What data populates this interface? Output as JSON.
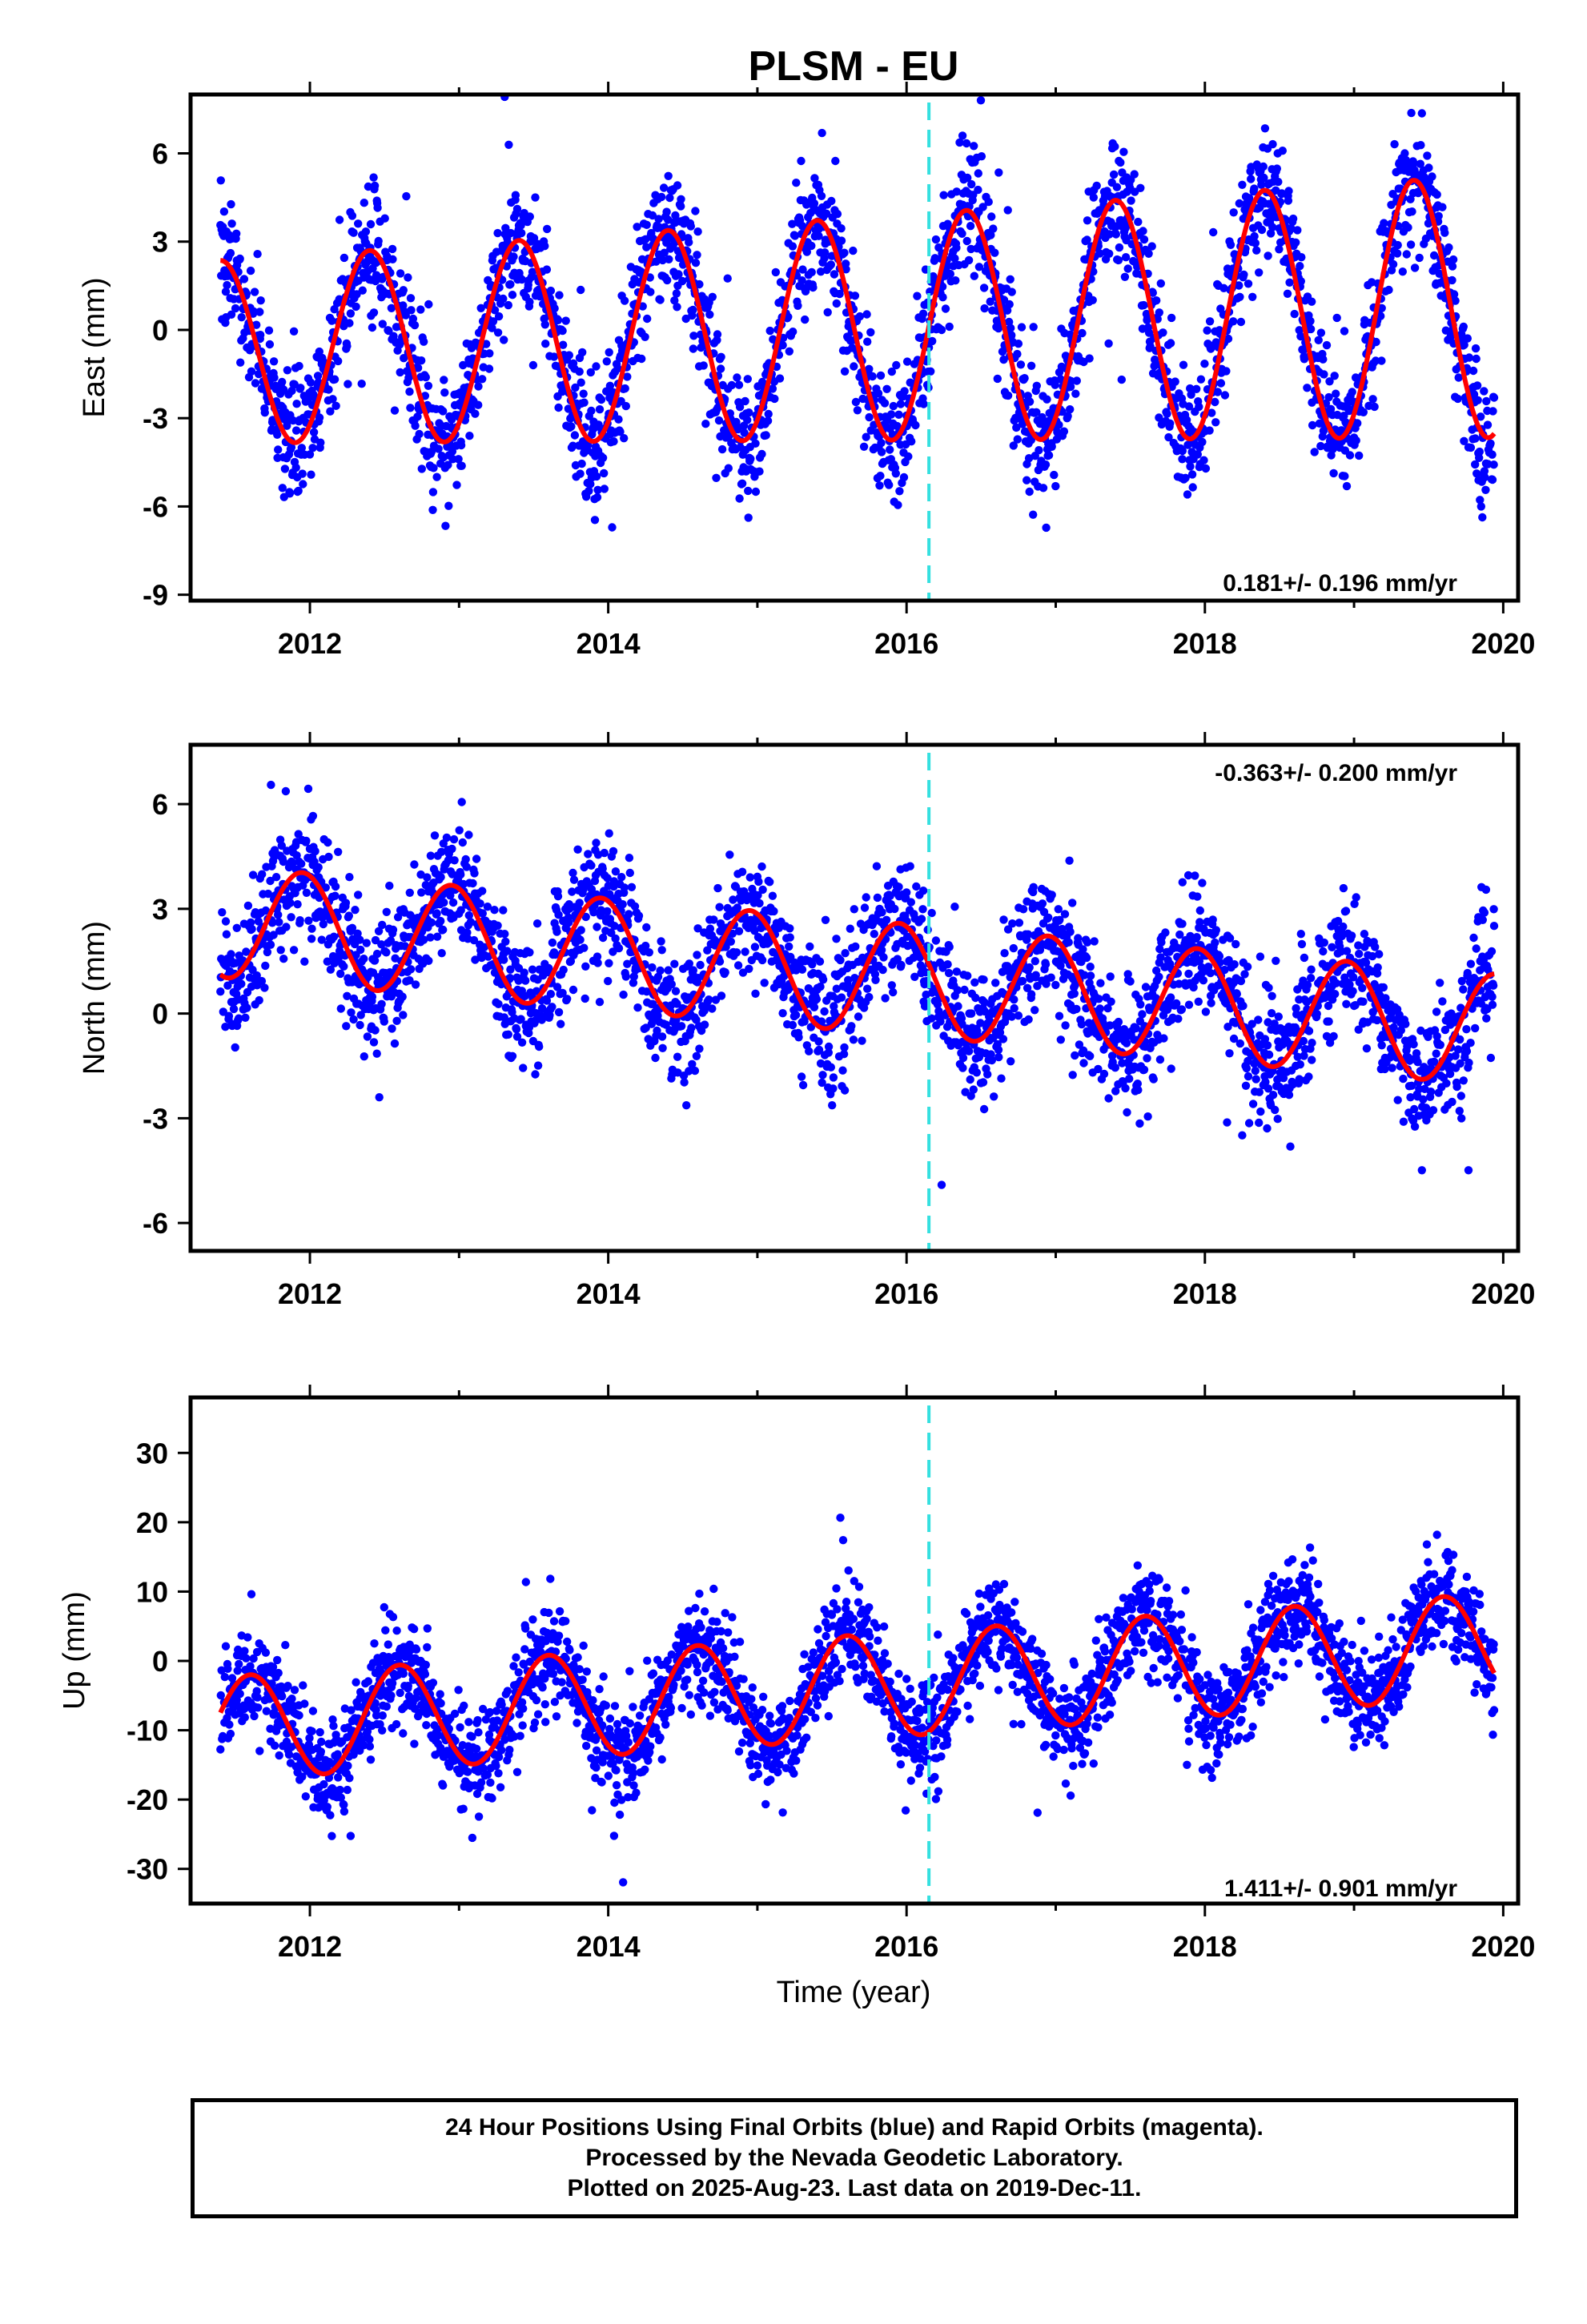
{
  "title": "PLSM - EU",
  "xlabel": "Time (year)",
  "footer": {
    "line1": "24 Hour Positions Using Final Orbits (blue) and Rapid Orbits (magenta).",
    "line2": "Processed by the Nevada Geodetic Laboratory.",
    "line3": "Plotted on 2025-Aug-23. Last data on 2019-Dec-11."
  },
  "colors": {
    "points": "#0000ff",
    "fit": "#ff0000",
    "equipment_change": "#33e0e0",
    "frame": "#000000"
  },
  "chart_data": [
    {
      "type": "scatter",
      "ylabel": "East (mm)",
      "rate_label": "0.181+/- 0.196 mm/yr",
      "xlim": [
        2011.2,
        2020.1
      ],
      "ylim": [
        -9.2,
        8
      ],
      "yticks": [
        6,
        3,
        0,
        -3,
        -6,
        -9
      ],
      "xticks": [
        2012,
        2014,
        2016,
        2018,
        2020
      ],
      "equipment_change_x": 2016.15,
      "time_range": [
        2011.4,
        2019.94
      ],
      "fit": {
        "offset": 0.0,
        "trend": 0.181,
        "amplitude": 3.1,
        "amplitude_change": 0.16,
        "peak_year_fraction": 0.4,
        "noise_sd": 1.1
      },
      "series": [
        {
          "values": []
        }
      ]
    },
    {
      "type": "scatter",
      "ylabel": "North (mm)",
      "rate_label": "-0.363+/- 0.200 mm/yr",
      "xlim": [
        2011.2,
        2020.1
      ],
      "ylim": [
        -6.8,
        7.7
      ],
      "yticks": [
        6,
        3,
        0,
        -3,
        -6
      ],
      "xticks": [
        2012,
        2014,
        2016,
        2018,
        2020
      ],
      "equipment_change_x": 2016.15,
      "time_range": [
        2011.4,
        2019.94
      ],
      "fit": {
        "offset": 1.15,
        "trend": -0.363,
        "amplitude": 1.6,
        "amplitude_change": 0.0,
        "peak_year_fraction": 0.95,
        "noise_sd": 0.9
      },
      "series": [
        {
          "values": []
        }
      ]
    },
    {
      "type": "scatter",
      "ylabel": "Up (mm)",
      "rate_label": "1.411+/- 0.901 mm/yr",
      "xlim": [
        2011.2,
        2020.1
      ],
      "ylim": [
        -35,
        38
      ],
      "yticks": [
        30,
        20,
        10,
        0,
        -10,
        -20,
        -30
      ],
      "xticks": [
        2012,
        2014,
        2016,
        2018,
        2020
      ],
      "equipment_change_x": 2016.15,
      "time_range": [
        2011.4,
        2019.94
      ],
      "fit": {
        "offset": -4.0,
        "trend": 1.411,
        "amplitude": 7.5,
        "amplitude_change": 0.0,
        "peak_year_fraction": 0.6,
        "noise_sd": 3.6
      },
      "series": [
        {
          "values": []
        }
      ]
    }
  ]
}
